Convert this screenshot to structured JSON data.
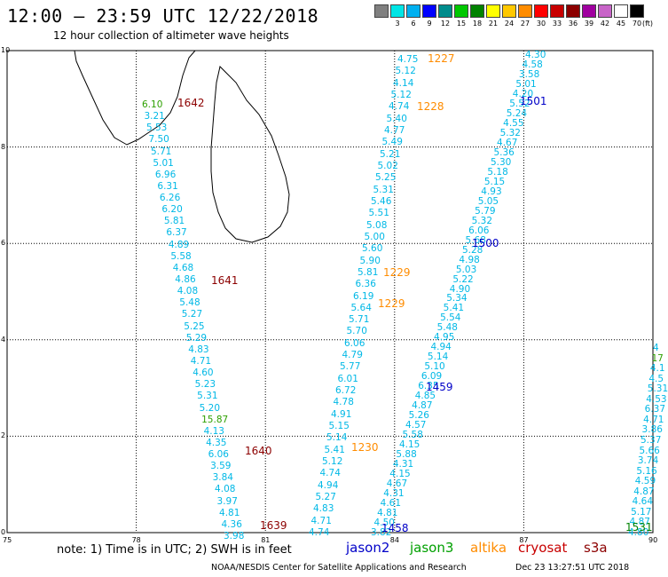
{
  "header": {
    "title": "12:00 — 23:59 UTC 12/22/2018",
    "subtitle": "12 hour collection of altimeter wave heights"
  },
  "color_scale": {
    "unit": "(ft)",
    "colors": [
      "#808080",
      "#00e5e5",
      "#00b0f0",
      "#0000ff",
      "#008c8c",
      "#00c800",
      "#008200",
      "#ffff00",
      "#ffc800",
      "#ff8c00",
      "#ff0000",
      "#c80000",
      "#8c0000",
      "#a000a0",
      "#c864c8",
      "#ffffff",
      "#000000"
    ],
    "labels": [
      "3",
      "6",
      "9",
      "12",
      "15",
      "18",
      "21",
      "24",
      "27",
      "30",
      "33",
      "36",
      "39",
      "42",
      "45",
      "70"
    ]
  },
  "map": {
    "x_ticks": [
      "75",
      "78",
      "81",
      "84",
      "87",
      "90"
    ],
    "y_ticks": [
      "0",
      "2",
      "4",
      "6",
      "8",
      "10"
    ]
  },
  "passes": [
    {
      "label": "1642",
      "color": "#8c0000"
    },
    {
      "label": "1641",
      "color": "#8c0000"
    },
    {
      "label": "1640",
      "color": "#8c0000"
    },
    {
      "label": "1639",
      "color": "#8c0000"
    },
    {
      "label": "1227",
      "color": "#ff8c00"
    },
    {
      "label": "1228",
      "color": "#ff8c00"
    },
    {
      "label": "1229",
      "color": "#ff8c00"
    },
    {
      "label": "1229",
      "color": "#ff8c00"
    },
    {
      "label": "1230",
      "color": "#ff8c00"
    },
    {
      "label": "1501",
      "color": "#0000c8"
    },
    {
      "label": "1500",
      "color": "#0000c8"
    },
    {
      "label": "1459",
      "color": "#0000c8"
    },
    {
      "label": "1458",
      "color": "#0000c8"
    },
    {
      "label": "1531",
      "color": "#008200"
    }
  ],
  "tracks": [
    {
      "name": "cryosat-west",
      "values": [
        "6.10",
        "3.21",
        "5.53",
        "7.50",
        "5.71",
        "5.01",
        "6.96",
        "6.31",
        "6.26",
        "6.20",
        "5.81",
        "6.37",
        "4.89",
        "5.58",
        "4.68",
        "4.86",
        "4.08",
        "5.48",
        "5.27",
        "5.25",
        "5.29",
        "4.83",
        "4.71",
        "4.60",
        "5.23",
        "5.31",
        "5.20",
        "15.87",
        "4.13",
        "4.35",
        "6.06",
        "3.59",
        "3.84",
        "4.08",
        "3.97",
        "4.81",
        "4.36",
        "3.98"
      ]
    },
    {
      "name": "altika-middle",
      "values": [
        "4.75",
        "5.12",
        "4.14",
        "5.12",
        "4.74",
        "5.40",
        "4.77",
        "5.49",
        "5.21",
        "5.02",
        "5.25",
        "5.31",
        "5.46",
        "5.51",
        "5.08",
        "5.00",
        "5.60",
        "5.90",
        "5.81",
        "6.36",
        "6.19",
        "5.64",
        "5.71",
        "5.70",
        "6.06",
        "4.79",
        "5.77",
        "6.01",
        "6.72",
        "4.78",
        "4.91",
        "5.15",
        "5.14",
        "5.41",
        "5.12",
        "4.74",
        "4.94",
        "5.27",
        "4.83",
        "4.71",
        "4.74"
      ]
    },
    {
      "name": "jason2-east",
      "values": [
        "4.30",
        "4.58",
        "3.58",
        "5.01",
        "4.20",
        "5.52",
        "5.24",
        "4.55",
        "5.32",
        "4.67",
        "5.36",
        "5.30",
        "5.18",
        "5.15",
        "4.93",
        "5.05",
        "5.79",
        "5.32",
        "6.06",
        "5.68",
        "5.28",
        "4.98",
        "5.03",
        "5.22",
        "4.90",
        "5.34",
        "5.41",
        "5.54",
        "5.48",
        "4.95",
        "4.94",
        "5.14",
        "5.10",
        "6.09",
        "6.35",
        "4.85",
        "4.87",
        "5.26",
        "4.57",
        "5.58",
        "4.15",
        "5.88",
        "4.31",
        "4.15",
        "4.67",
        "4.31",
        "4.61",
        "4.81",
        "4.50",
        "3.82"
      ]
    },
    {
      "name": "jason3-far-east",
      "values": [
        "4",
        "17",
        "4.1",
        "4.5",
        "5.31",
        "4.53",
        "6.37",
        "4.71",
        "3.86",
        "5.37",
        "5.66",
        "3.74",
        "5.16",
        "4.59",
        "4.87",
        "4.64",
        "5.17",
        "4.87",
        "4.80"
      ]
    }
  ],
  "notes": {
    "note": "note: 1) Time is in UTC; 2) SWH is in feet",
    "satellites": [
      {
        "name": "jason2",
        "color": "#0000c8"
      },
      {
        "name": "jason3",
        "color": "#00a000"
      },
      {
        "name": "altika",
        "color": "#ff8c00"
      },
      {
        "name": "cryosat",
        "color": "#c80000"
      },
      {
        "name": "s3a",
        "color": "#8c0000"
      }
    ],
    "footer": "NOAA/NESDIS Center for Satellite Applications and Research",
    "timestamp": "Dec 23 13:27:51 UTC 2018"
  }
}
